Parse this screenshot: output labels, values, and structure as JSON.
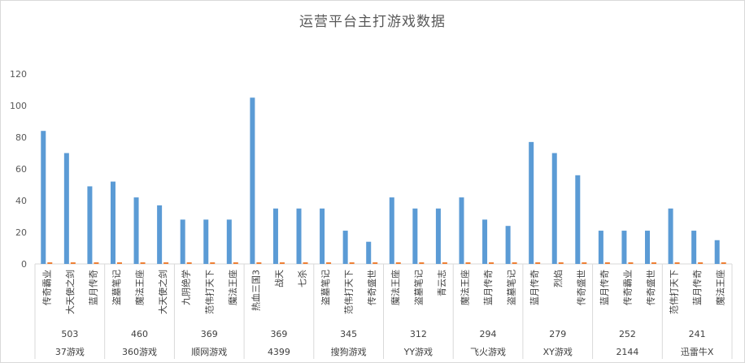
{
  "chart_data": {
    "type": "bar",
    "title": "运营平台主打游戏数据",
    "ylim": [
      0,
      120
    ],
    "yticks": [
      0,
      20,
      40,
      60,
      80,
      100,
      120
    ],
    "grid": false,
    "legend": "none",
    "colors": {
      "primary": "#5b9bd5",
      "secondary": "#ed7d31"
    },
    "groups": [
      {
        "platform": "37游戏",
        "total": "503",
        "games": [
          "传奇霸业",
          "大天使之剑",
          "蓝月传奇"
        ],
        "values": [
          84,
          70,
          49
        ],
        "values2": [
          1,
          1,
          1
        ]
      },
      {
        "platform": "360游戏",
        "total": "460",
        "games": [
          "盗墓笔记",
          "魔法王座",
          "大天使之剑"
        ],
        "values": [
          52,
          42,
          37
        ],
        "values2": [
          1,
          1,
          1
        ]
      },
      {
        "platform": "顺网游戏",
        "total": "369",
        "games": [
          "九阴绝学",
          "范伟打天下",
          "魔法王座"
        ],
        "values": [
          28,
          28,
          28
        ],
        "values2": [
          1,
          1,
          1
        ]
      },
      {
        "platform": "4399",
        "total": "369",
        "games": [
          "热血三国3",
          "战天",
          "七杀"
        ],
        "values": [
          105,
          35,
          35
        ],
        "values2": [
          1,
          1,
          1
        ]
      },
      {
        "platform": "搜狗游戏",
        "total": "345",
        "games": [
          "盗墓笔记",
          "范伟打天下",
          "传奇盛世"
        ],
        "values": [
          35,
          21,
          14
        ],
        "values2": [
          1,
          1,
          1
        ]
      },
      {
        "platform": "YY游戏",
        "total": "312",
        "games": [
          "魔法王座",
          "盗墓笔记",
          "青云志"
        ],
        "values": [
          42,
          35,
          35
        ],
        "values2": [
          1,
          1,
          1
        ]
      },
      {
        "platform": "飞火游戏",
        "total": "294",
        "games": [
          "魔法王座",
          "蓝月传奇",
          "盗墓笔记"
        ],
        "values": [
          42,
          28,
          24
        ],
        "values2": [
          1,
          1,
          1
        ]
      },
      {
        "platform": "XY游戏",
        "total": "279",
        "games": [
          "蓝月传奇",
          "烈焰",
          "传奇盛世"
        ],
        "values": [
          77,
          70,
          56
        ],
        "values2": [
          1,
          1,
          1
        ]
      },
      {
        "platform": "2144",
        "total": "252",
        "games": [
          "蓝月传奇",
          "传奇霸业",
          "传奇盛世"
        ],
        "values": [
          21,
          21,
          21
        ],
        "values2": [
          1,
          1,
          1
        ]
      },
      {
        "platform": "迅雷牛X",
        "total": "241",
        "games": [
          "范伟打天下",
          "蓝月传奇",
          "魔法王座"
        ],
        "values": [
          35,
          21,
          15
        ],
        "values2": [
          1,
          1,
          1
        ]
      }
    ]
  }
}
